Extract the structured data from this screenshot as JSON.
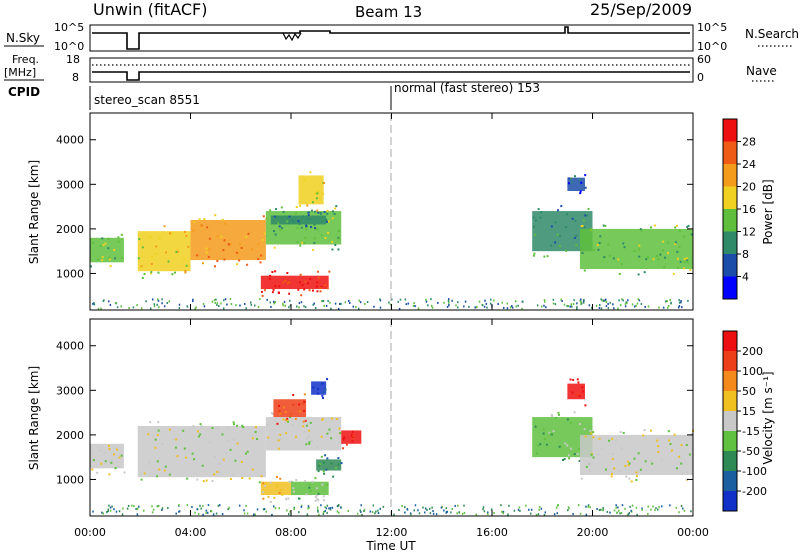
{
  "header": {
    "station": "Unwin (fitACF)",
    "beam": "Beam 13",
    "date": "25/Sep/2009"
  },
  "top_panels": {
    "nsky_label": "N.Sky",
    "nsearch_label": "N.Search",
    "nsky_ticks": [
      "10^5",
      "10^0"
    ],
    "freq_label": "Freq.",
    "freq_unit": "[MHz]",
    "freq_ticks": [
      "18",
      "8"
    ],
    "nave_ticks": [
      "60",
      "0"
    ],
    "nave_label": "Nave",
    "cpid_label": "CPID",
    "cpid_segments": [
      {
        "label": "stereo_scan 8551",
        "start_hour": 0
      },
      {
        "label": "normal (fast stereo) 153",
        "start_hour": 12
      }
    ]
  },
  "time_axis": {
    "label": "Time UT",
    "ticks": [
      "00:00",
      "04:00",
      "08:00",
      "12:00",
      "16:00",
      "20:00",
      "00:00"
    ],
    "range_hours": [
      0,
      24
    ]
  },
  "range_axis": {
    "label": "Slant Range [km]",
    "ticks": [
      "1000",
      "2000",
      "3000",
      "4000"
    ],
    "range_km": [
      180,
      4600
    ]
  },
  "power_colorbar": {
    "label": "Power [dB]",
    "ticks": [
      "4",
      "8",
      "12",
      "16",
      "20",
      "24",
      "28"
    ],
    "colors": [
      "#0000ff",
      "#1c4da8",
      "#2f8a6a",
      "#5fbf3c",
      "#f0d020",
      "#f59b1b",
      "#ef5a14",
      "#ee1010"
    ]
  },
  "velocity_colorbar": {
    "label": "Velocity [m s⁻¹]",
    "ticks": [
      "200",
      "100",
      "50",
      "15",
      "-15",
      "-50",
      "-100",
      "-200"
    ],
    "colors": [
      "#1030c8",
      "#1a5fa0",
      "#2e8a55",
      "#60c040",
      "#c8c8c8",
      "#f0c020",
      "#f58a1c",
      "#ee4018",
      "#ee1010"
    ]
  },
  "chart_data": [
    {
      "type": "heatmap",
      "name": "power",
      "xlabel": "Time UT",
      "ylabel": "Slant Range [km]",
      "xlim": [
        0,
        24
      ],
      "ylim": [
        180,
        4600
      ],
      "regions": [
        {
          "t0": 0.0,
          "t1": 1.35,
          "r0": 1250,
          "r1": 1800,
          "level": 3
        },
        {
          "t0": 1.9,
          "t1": 4.0,
          "r0": 1050,
          "r1": 1950,
          "level": 4
        },
        {
          "t0": 4.0,
          "t1": 7.0,
          "r0": 1300,
          "r1": 2200,
          "level": 5
        },
        {
          "t0": 7.0,
          "t1": 10.0,
          "r0": 1650,
          "r1": 2400,
          "level": 3
        },
        {
          "t0": 6.8,
          "t1": 9.5,
          "r0": 650,
          "r1": 950,
          "level": 7
        },
        {
          "t0": 8.3,
          "t1": 9.3,
          "r0": 2550,
          "r1": 3200,
          "level": 4
        },
        {
          "t0": 7.2,
          "t1": 9.4,
          "r0": 2100,
          "r1": 2300,
          "level": 2
        },
        {
          "t0": 17.6,
          "t1": 20.0,
          "r0": 1500,
          "r1": 2400,
          "level": 2
        },
        {
          "t0": 19.5,
          "t1": 24.0,
          "r0": 1100,
          "r1": 2000,
          "level": 3
        },
        {
          "t0": 19.0,
          "t1": 19.7,
          "r0": 2850,
          "r1": 3150,
          "level": 1
        }
      ]
    },
    {
      "type": "heatmap",
      "name": "velocity",
      "xlabel": "Time UT",
      "ylabel": "Slant Range [km]",
      "xlim": [
        0,
        24
      ],
      "ylim": [
        180,
        4600
      ],
      "regions": [
        {
          "t0": 0.0,
          "t1": 1.35,
          "r0": 1250,
          "r1": 1800,
          "level": 4
        },
        {
          "t0": 1.9,
          "t1": 7.0,
          "r0": 1050,
          "r1": 2200,
          "level": 4
        },
        {
          "t0": 7.0,
          "t1": 10.0,
          "r0": 1650,
          "r1": 2400,
          "level": 4
        },
        {
          "t0": 6.8,
          "t1": 8.0,
          "r0": 650,
          "r1": 950,
          "level": 5
        },
        {
          "t0": 8.0,
          "t1": 9.5,
          "r0": 650,
          "r1": 950,
          "level": 3
        },
        {
          "t0": 8.8,
          "t1": 9.4,
          "r0": 2900,
          "r1": 3200,
          "level": 0
        },
        {
          "t0": 7.3,
          "t1": 8.6,
          "r0": 2400,
          "r1": 2800,
          "level": 7
        },
        {
          "t0": 10.0,
          "t1": 10.8,
          "r0": 1800,
          "r1": 2100,
          "level": 8
        },
        {
          "t0": 9.0,
          "t1": 10.0,
          "r0": 1200,
          "r1": 1450,
          "level": 2
        },
        {
          "t0": 17.6,
          "t1": 20.0,
          "r0": 1500,
          "r1": 2400,
          "level": 3
        },
        {
          "t0": 19.5,
          "t1": 24.0,
          "r0": 1100,
          "r1": 2000,
          "level": 4
        },
        {
          "t0": 19.0,
          "t1": 19.7,
          "r0": 2800,
          "r1": 3150,
          "level": 8
        }
      ]
    }
  ]
}
